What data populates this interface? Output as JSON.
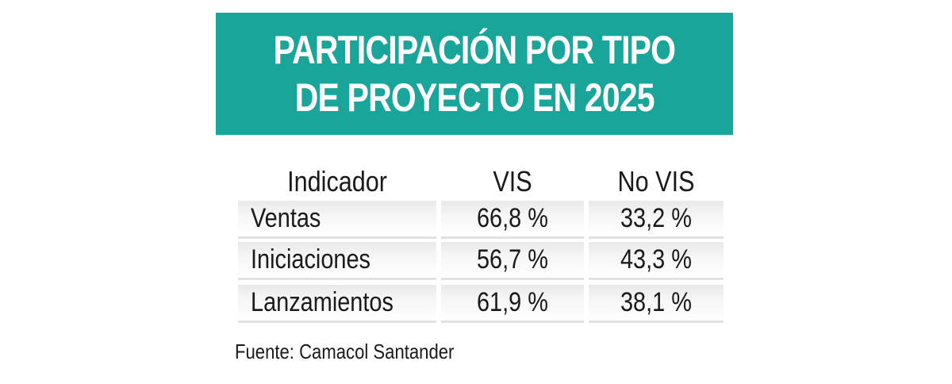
{
  "title": {
    "line1": "PARTICIPACIÓN POR TIPO",
    "line2": "DE PROYECTO EN 2025"
  },
  "colors": {
    "title_background": "#1aa59a",
    "title_text": "#ffffff"
  },
  "chart_data": {
    "type": "table",
    "title": "PARTICIPACIÓN POR TIPO DE PROYECTO EN 2025",
    "columns": [
      "Indicador",
      "VIS",
      "No VIS"
    ],
    "rows": [
      {
        "indicador": "Ventas",
        "vis": "66,8 %",
        "no_vis": "33,2 %"
      },
      {
        "indicador": "Iniciaciones",
        "vis": "56,7 %",
        "no_vis": "43,3 %"
      },
      {
        "indicador": "Lanzamientos",
        "vis": "61,9 %",
        "no_vis": "38,1 %"
      }
    ],
    "source": "Fuente: Camacol Santander"
  }
}
